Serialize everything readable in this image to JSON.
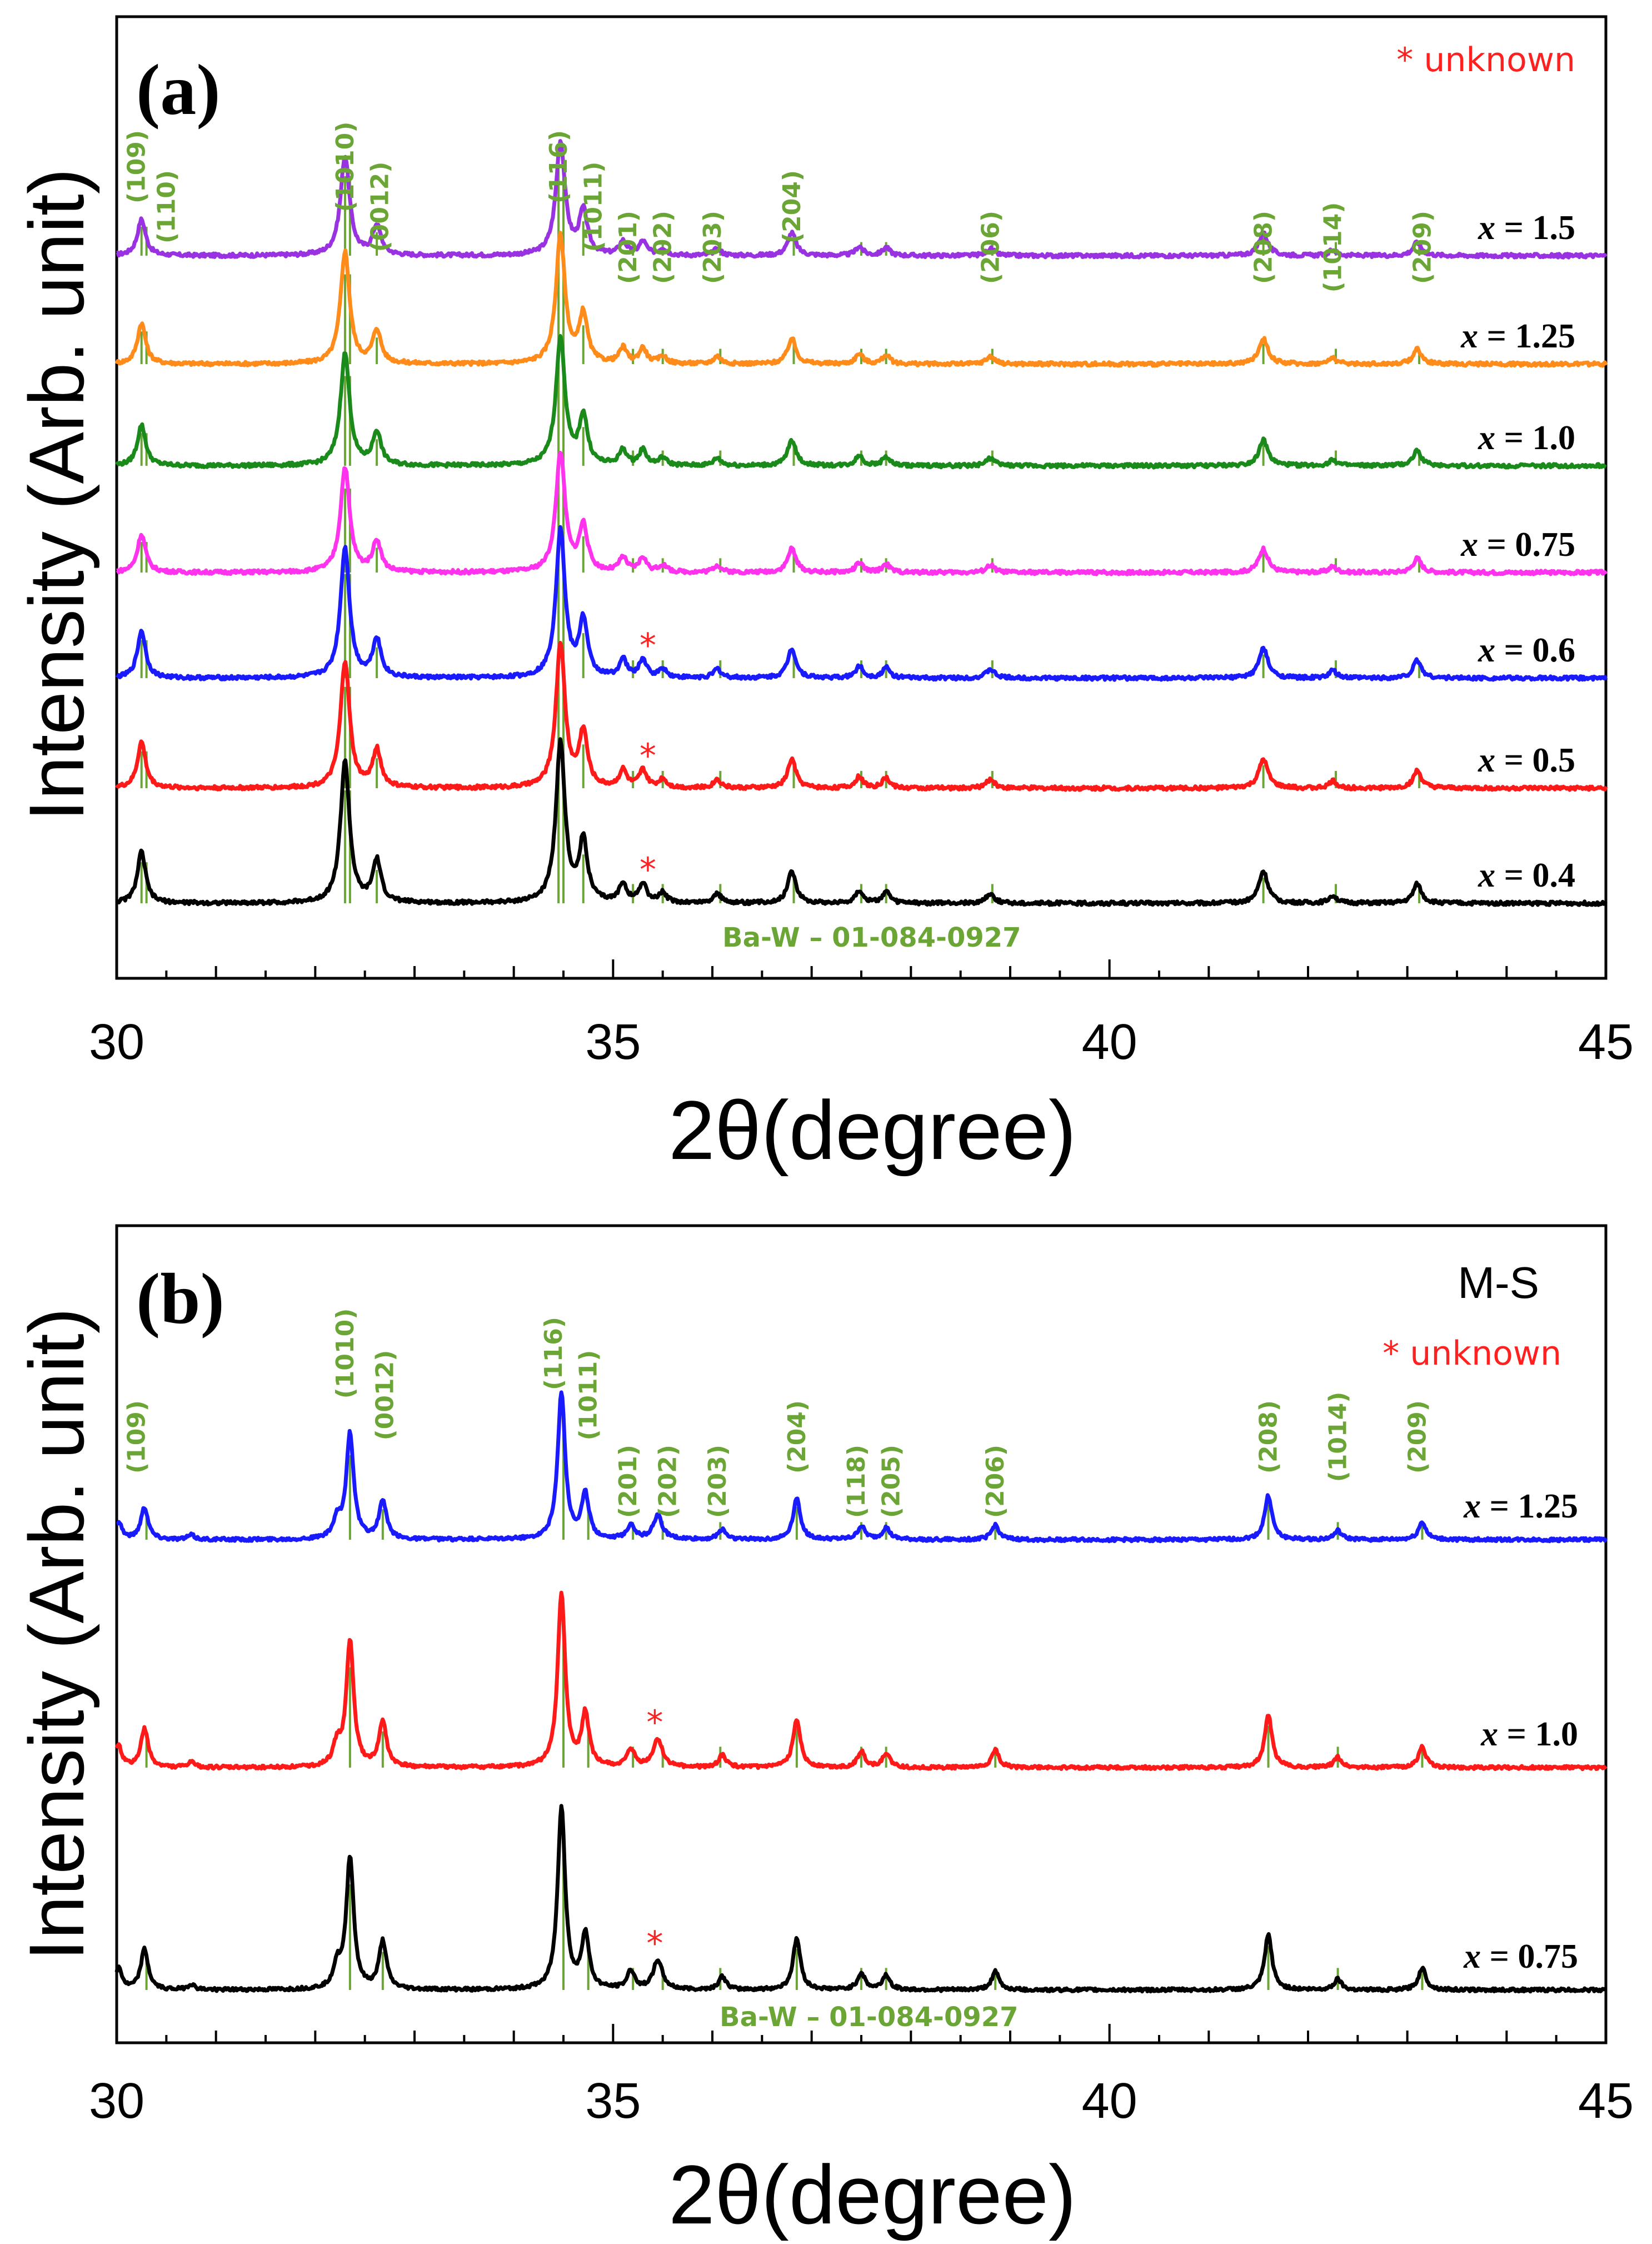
{
  "chart_data": [
    {
      "panel": "(a)",
      "type": "line",
      "xlabel": "2θ(degree)",
      "ylabel": "Intensity (Arb. unit)",
      "xlim": [
        30,
        45
      ],
      "xticks": [
        30,
        35,
        40,
        45
      ],
      "legend_text": "* unknown",
      "legend_star": "*",
      "legend_rest": " unknown",
      "legend_color": "#ff2020",
      "extra_label": "",
      "reference_label": "Ba-W – 01-084-0927",
      "reference_color": "#6aa535",
      "reference_peaks": [
        30.25,
        30.3,
        32.3,
        32.35,
        32.62,
        34.45,
        34.5,
        34.7,
        35.2,
        35.5,
        36.08,
        36.82,
        37.5,
        37.75,
        38.82,
        41.55,
        42.28,
        43.12
      ],
      "hkl_labels": [
        {
          "text": "(109)",
          "x": 30.2,
          "row": 0
        },
        {
          "text": "(110)",
          "x": 30.5,
          "row": 1
        },
        {
          "text": "(1010)",
          "x": 32.3,
          "row": 0
        },
        {
          "text": "(0012)",
          "x": 32.65,
          "row": 1
        },
        {
          "text": "(116)",
          "x": 34.45,
          "row": 0
        },
        {
          "text": "(1011)",
          "x": 34.8,
          "row": 1
        },
        {
          "text": "(201)",
          "x": 35.15,
          "row": 2
        },
        {
          "text": "(202)",
          "x": 35.5,
          "row": 2
        },
        {
          "text": "(203)",
          "x": 36.0,
          "row": 2
        },
        {
          "text": "(204)",
          "x": 36.8,
          "row": 1
        },
        {
          "text": "(206)",
          "x": 38.8,
          "row": 2
        },
        {
          "text": "(208)",
          "x": 41.55,
          "row": 2
        },
        {
          "text": "(1014)",
          "x": 42.25,
          "row": 2
        },
        {
          "text": "(209)",
          "x": 43.15,
          "row": 2
        }
      ],
      "unknown_marker_x": 35.35,
      "peaks": [
        {
          "x": 30.25,
          "rel": 0.32,
          "w": 0.05
        },
        {
          "x": 32.3,
          "rel": 0.88,
          "w": 0.055
        },
        {
          "x": 32.62,
          "rel": 0.26,
          "w": 0.05
        },
        {
          "x": 34.47,
          "rel": 1.0,
          "w": 0.055
        },
        {
          "x": 34.7,
          "rel": 0.38,
          "w": 0.05
        },
        {
          "x": 35.1,
          "rel": 0.12,
          "w": 0.045
        },
        {
          "x": 35.3,
          "rel": 0.12,
          "w": 0.045
        },
        {
          "x": 35.5,
          "rel": 0.06,
          "w": 0.045
        },
        {
          "x": 36.05,
          "rel": 0.06,
          "w": 0.045
        },
        {
          "x": 36.8,
          "rel": 0.2,
          "w": 0.05
        },
        {
          "x": 37.48,
          "rel": 0.08,
          "w": 0.045
        },
        {
          "x": 37.75,
          "rel": 0.07,
          "w": 0.045
        },
        {
          "x": 38.8,
          "rel": 0.06,
          "w": 0.05
        },
        {
          "x": 41.55,
          "rel": 0.2,
          "w": 0.055
        },
        {
          "x": 42.25,
          "rel": 0.05,
          "w": 0.045
        },
        {
          "x": 43.1,
          "rel": 0.12,
          "w": 0.05
        }
      ],
      "series": [
        {
          "name": "x = 1.5",
          "var": "x",
          "val": " = 1.5",
          "color": "#9932e0",
          "scale": 0.55
        },
        {
          "name": "x = 1.25",
          "var": "x",
          "val": " = 1.25",
          "color": "#ff8c1a",
          "scale": 0.62
        },
        {
          "name": "x = 1.0",
          "var": "x",
          "val": " = 1.0",
          "color": "#1a8a1a",
          "scale": 0.62
        },
        {
          "name": "x = 0.75",
          "var": "x",
          "val": " = 0.75",
          "color": "#ff33ee",
          "scale": 0.58
        },
        {
          "name": "x = 0.6",
          "var": "x",
          "val": " = 0.6",
          "color": "#1a1aff",
          "scale": 0.72,
          "unknown": true
        },
        {
          "name": "x = 0.5",
          "var": "x",
          "val": " = 0.5",
          "color": "#ff1a1a",
          "scale": 0.7,
          "unknown": true
        },
        {
          "name": "x = 0.4",
          "var": "x",
          "val": " = 0.4",
          "color": "#000000",
          "scale": 0.78,
          "unknown": true
        }
      ]
    },
    {
      "panel": "(b)",
      "type": "line",
      "xlabel": "2θ(degree)",
      "ylabel": "Intensity (Arb. unit)",
      "xlim": [
        30,
        45
      ],
      "xticks": [
        30,
        35,
        40,
        45
      ],
      "legend_text": "* unknown",
      "legend_star": "*",
      "legend_rest": " unknown",
      "legend_color": "#ff2020",
      "extra_label": "M-S",
      "reference_label": "Ba-W – 01-084-0927",
      "reference_color": "#6aa535",
      "reference_peaks": [
        30.3,
        32.35,
        32.68,
        34.5,
        34.75,
        35.2,
        35.5,
        36.08,
        36.85,
        37.5,
        37.75,
        38.85,
        41.6,
        42.3,
        43.15
      ],
      "hkl_labels": [
        {
          "text": "(109)",
          "x": 30.2,
          "row": 2
        },
        {
          "text": "(1010)",
          "x": 32.3,
          "row": 0
        },
        {
          "text": "(0012)",
          "x": 32.7,
          "row": 1
        },
        {
          "text": "(116)",
          "x": 34.4,
          "row": 0
        },
        {
          "text": "(1011)",
          "x": 34.75,
          "row": 1
        },
        {
          "text": "(201)",
          "x": 35.15,
          "row": 3
        },
        {
          "text": "(202)",
          "x": 35.55,
          "row": 3
        },
        {
          "text": "(203)",
          "x": 36.05,
          "row": 3
        },
        {
          "text": "(204)",
          "x": 36.85,
          "row": 2
        },
        {
          "text": "(118)",
          "x": 37.45,
          "row": 3
        },
        {
          "text": "(205)",
          "x": 37.8,
          "row": 3
        },
        {
          "text": "(206)",
          "x": 38.85,
          "row": 3
        },
        {
          "text": "(208)",
          "x": 41.6,
          "row": 2
        },
        {
          "text": "(1014)",
          "x": 42.3,
          "row": 2
        },
        {
          "text": "(209)",
          "x": 43.1,
          "row": 2
        }
      ],
      "unknown_marker_x": 35.42,
      "peaks": [
        {
          "x": 30.02,
          "rel": 0.12,
          "w": 0.04
        },
        {
          "x": 30.28,
          "rel": 0.22,
          "w": 0.045
        },
        {
          "x": 30.75,
          "rel": 0.03,
          "w": 0.04
        },
        {
          "x": 32.22,
          "rel": 0.12,
          "w": 0.045
        },
        {
          "x": 32.35,
          "rel": 0.72,
          "w": 0.045
        },
        {
          "x": 32.68,
          "rel": 0.26,
          "w": 0.045
        },
        {
          "x": 34.48,
          "rel": 1.0,
          "w": 0.045
        },
        {
          "x": 34.72,
          "rel": 0.3,
          "w": 0.045
        },
        {
          "x": 35.18,
          "rel": 0.1,
          "w": 0.045
        },
        {
          "x": 35.45,
          "rel": 0.16,
          "w": 0.055
        },
        {
          "x": 36.1,
          "rel": 0.07,
          "w": 0.045
        },
        {
          "x": 36.85,
          "rel": 0.28,
          "w": 0.045
        },
        {
          "x": 37.5,
          "rel": 0.09,
          "w": 0.045
        },
        {
          "x": 37.75,
          "rel": 0.08,
          "w": 0.045
        },
        {
          "x": 38.85,
          "rel": 0.1,
          "w": 0.045
        },
        {
          "x": 41.6,
          "rel": 0.3,
          "w": 0.045
        },
        {
          "x": 42.3,
          "rel": 0.06,
          "w": 0.045
        },
        {
          "x": 43.15,
          "rel": 0.12,
          "w": 0.045
        }
      ],
      "series": [
        {
          "name": "x = 1.25",
          "var": "x",
          "val": " = 1.25",
          "color": "#1a1aff",
          "scale": 0.8
        },
        {
          "name": "x = 1.0",
          "var": "x",
          "val": " = 1.0",
          "color": "#ff1a1a",
          "scale": 0.95,
          "unknown": true
        },
        {
          "name": "x = 0.75",
          "var": "x",
          "val": " = 0.75",
          "color": "#000000",
          "scale": 1.0,
          "unknown": true
        }
      ]
    }
  ]
}
